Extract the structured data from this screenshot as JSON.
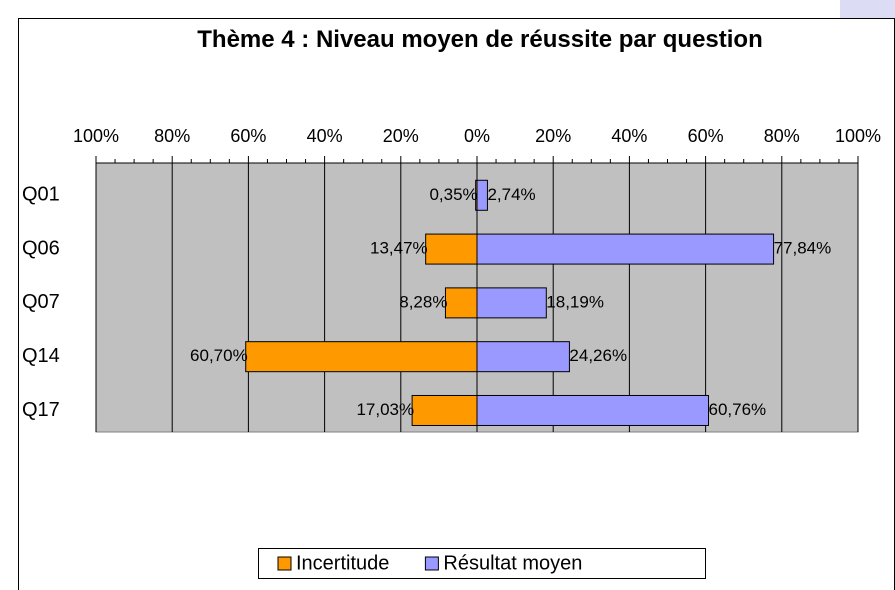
{
  "chart_data": {
    "type": "diverging-bar",
    "title": "Thème 4 : Niveau moyen de réussite par question",
    "categories": [
      "Q01",
      "Q06",
      "Q07",
      "Q14",
      "Q17"
    ],
    "series": [
      {
        "name": "Incertitude",
        "color": "#ff9900",
        "values": [
          -0.35,
          -13.47,
          -8.28,
          -60.7,
          -17.03
        ],
        "value_labels": [
          "0,35%",
          "13,47%",
          "8,28%",
          "60,70%",
          "17,03%"
        ]
      },
      {
        "name": "Résultat moyen",
        "color": "#9999ff",
        "values": [
          2.74,
          77.84,
          18.19,
          24.26,
          60.76
        ],
        "value_labels": [
          "2,74%",
          "77,84%",
          "18,19%",
          "24,26%",
          "60,76%"
        ]
      }
    ],
    "xlim": [
      -100,
      100
    ],
    "xticks": [
      {
        "value": -100,
        "label": "100%"
      },
      {
        "value": -80,
        "label": "80%"
      },
      {
        "value": -60,
        "label": "60%"
      },
      {
        "value": -40,
        "label": "40%"
      },
      {
        "value": -20,
        "label": "20%"
      },
      {
        "value": 0,
        "label": "0%"
      },
      {
        "value": 20,
        "label": "20%"
      },
      {
        "value": 40,
        "label": "40%"
      },
      {
        "value": 60,
        "label": "60%"
      },
      {
        "value": 80,
        "label": "80%"
      },
      {
        "value": 100,
        "label": "100%"
      }
    ],
    "grid": true,
    "legend": "bottom"
  }
}
